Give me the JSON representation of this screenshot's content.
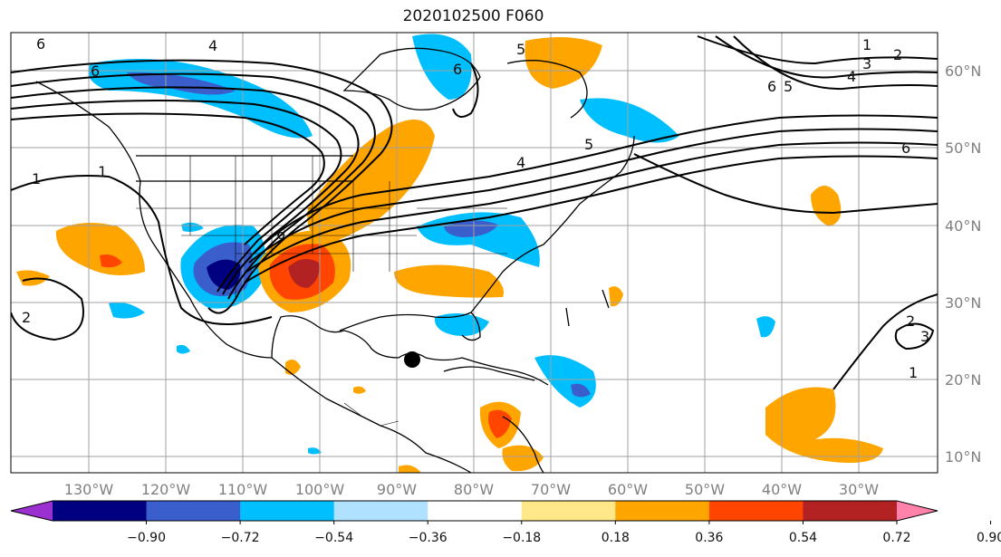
{
  "title": "2020102500 F060",
  "longitude_labels": [
    "130°W",
    "120°W",
    "110°W",
    "100°W",
    "90°W",
    "80°W",
    "70°W",
    "60°W",
    "50°W",
    "40°W",
    "30°W"
  ],
  "latitude_labels": [
    "60°N",
    "50°N",
    "40°N",
    "30°N",
    "20°N",
    "10°N"
  ],
  "colorbar": {
    "tick_labels": [
      "−0.90",
      "−0.72",
      "−0.54",
      "−0.36",
      "−0.18",
      "0.18",
      "0.36",
      "0.54",
      "0.72",
      "0.90"
    ],
    "colors": [
      "#9b30d0",
      "#000080",
      "#3a5fcd",
      "#00bfff",
      "#b0e2ff",
      "#ffffff",
      "#ffe88a",
      "#ffa500",
      "#ff4500",
      "#b22222",
      "#ff82ab"
    ]
  },
  "contour_labels": [
    "6",
    "4",
    "1",
    "2",
    "3",
    "5"
  ],
  "marker": "storm-center-dot",
  "colors": {
    "contour": "#000000",
    "grid": "#a0a0a0",
    "coast": "#000000"
  }
}
